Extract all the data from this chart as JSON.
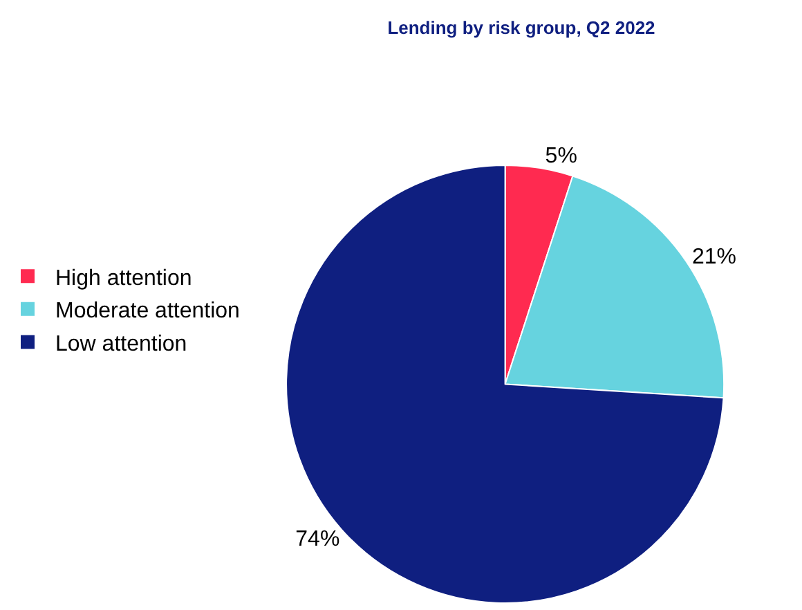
{
  "chart_data": {
    "type": "pie",
    "title": "Lending by risk group, Q2 2022",
    "categories": [
      "High attention",
      "Moderate attention",
      "Low attention"
    ],
    "values": [
      5,
      21,
      74
    ],
    "colors": [
      "#ff2a50",
      "#66d3df",
      "#0f1f80"
    ],
    "value_labels": [
      "5%",
      "21%",
      "74%"
    ],
    "legend": "left"
  }
}
